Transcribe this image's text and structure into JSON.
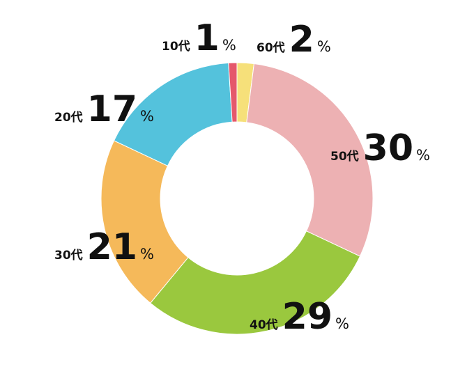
{
  "chart_data": {
    "type": "donut",
    "categories": [
      "60代",
      "50代",
      "40代",
      "30代",
      "20代",
      "10代"
    ],
    "values": [
      2,
      30,
      29,
      21,
      17,
      1
    ],
    "unit": "%",
    "colors": [
      "#f6e07a",
      "#edb1b3",
      "#9ac83e",
      "#f5b95a",
      "#54c2dc",
      "#e5586b"
    ]
  }
}
